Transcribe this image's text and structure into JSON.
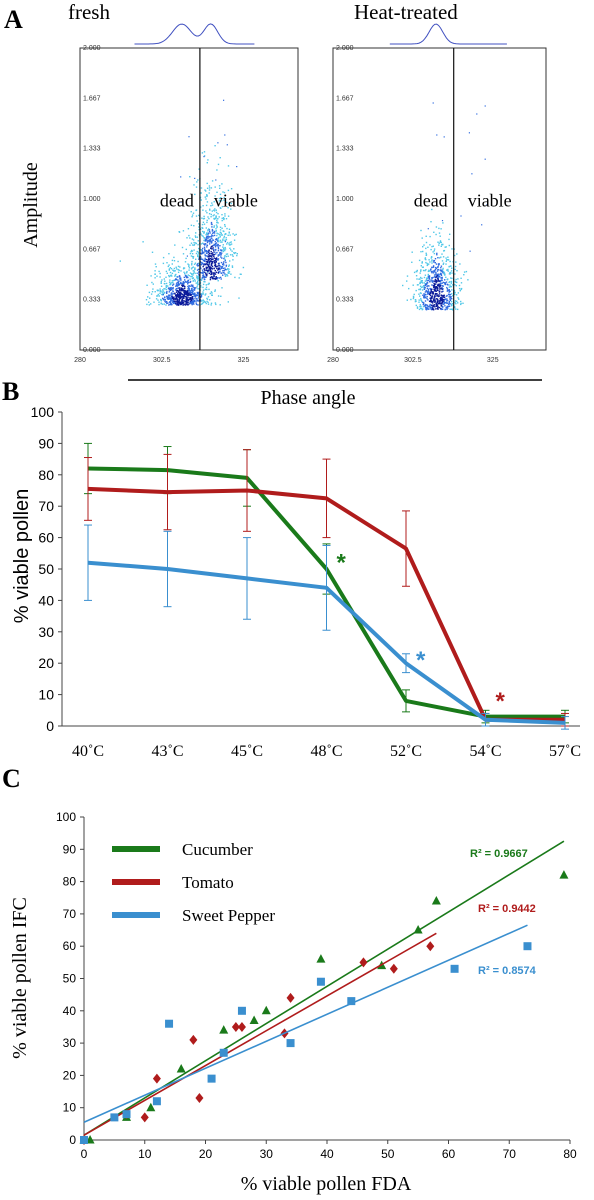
{
  "chart_data": [
    {
      "panel": "A",
      "type": "scatter",
      "ylabel": "Amplitude",
      "xlabel": "Phase angle",
      "subplots": [
        {
          "title": "fresh",
          "xticks": [
            "280",
            "302.5",
            "325"
          ],
          "yticks": [
            "0.000",
            "0.333",
            "0.667",
            "1.000",
            "1.333",
            "1.667",
            "2.000"
          ],
          "xlim": [
            280,
            340
          ],
          "ylim": [
            0,
            2
          ],
          "gate_x": 313,
          "labels": [
            "dead",
            "viable"
          ],
          "clusters": [
            {
              "x": 308,
              "y": 0.35,
              "sx": 4,
              "sy": 0.12
            },
            {
              "x": 316,
              "y": 0.55,
              "sx": 3,
              "sy": 0.2
            }
          ]
        },
        {
          "title": "Heat-treated",
          "xticks": [
            "280",
            "302.5",
            "325"
          ],
          "yticks": [
            "0.000",
            "0.333",
            "0.667",
            "1.000",
            "1.333",
            "1.667",
            "2.000"
          ],
          "xlim": [
            280,
            340
          ],
          "ylim": [
            0,
            2
          ],
          "gate_x": 314,
          "labels": [
            "dead",
            "viable"
          ],
          "clusters": [
            {
              "x": 309,
              "y": 0.35,
              "sx": 3,
              "sy": 0.2
            }
          ]
        }
      ]
    },
    {
      "panel": "B",
      "type": "line",
      "ylabel": "% viable pollen",
      "xlabel": "",
      "categories": [
        "40˚C",
        "43˚C",
        "45˚C",
        "48˚C",
        "52˚C",
        "54˚C",
        "57˚C"
      ],
      "ylim": [
        0,
        100
      ],
      "yticks": [
        0,
        10,
        20,
        30,
        40,
        50,
        60,
        70,
        80,
        90,
        100
      ],
      "series": [
        {
          "color": "#1a7a1a",
          "values": [
            82,
            81.5,
            79,
            50,
            8,
            3,
            3
          ],
          "err": [
            8,
            7.5,
            9,
            8,
            3.5,
            2,
            2
          ]
        },
        {
          "color": "#b01c1c",
          "values": [
            75.5,
            74.5,
            75,
            72.5,
            56.5,
            2,
            2
          ],
          "err": [
            10,
            12,
            13,
            12.5,
            12,
            2,
            2
          ]
        },
        {
          "color": "#3a8fcf",
          "values": [
            52,
            50,
            47,
            44,
            20,
            2,
            1
          ],
          "err": [
            12,
            12,
            13,
            13.5,
            3,
            2,
            2
          ]
        }
      ],
      "annotations": [
        {
          "text": "*",
          "x": "48˚C",
          "y": 52,
          "color": "#1a7a1a"
        },
        {
          "text": "*",
          "x": "52˚C",
          "y": 21,
          "color": "#3a8fcf"
        },
        {
          "text": "*",
          "x": "54˚C",
          "y": 8,
          "color": "#b01c1c"
        }
      ]
    },
    {
      "panel": "C",
      "type": "scatter",
      "xlabel": "% viable pollen FDA",
      "ylabel": "% viable pollen IFC",
      "xlim": [
        0,
        80
      ],
      "ylim": [
        0,
        100
      ],
      "xticks": [
        0,
        10,
        20,
        30,
        40,
        50,
        60,
        70,
        80
      ],
      "yticks": [
        0,
        10,
        20,
        30,
        40,
        50,
        60,
        70,
        80,
        90,
        100
      ],
      "series": [
        {
          "name": "Cucumber",
          "color": "#1a7a1a",
          "marker": "triangle",
          "r2": "R² = 0.9667",
          "fit": [
            [
              0,
              1.5
            ],
            [
              79,
              92.5
            ]
          ],
          "points": [
            [
              0,
              0
            ],
            [
              1,
              0
            ],
            [
              7,
              7
            ],
            [
              11,
              10
            ],
            [
              16,
              22
            ],
            [
              23,
              34
            ],
            [
              28,
              37
            ],
            [
              30,
              40
            ],
            [
              39,
              56
            ],
            [
              49,
              54
            ],
            [
              55,
              65
            ],
            [
              58,
              74
            ],
            [
              79,
              82
            ]
          ]
        },
        {
          "name": "Tomato",
          "color": "#b01c1c",
          "marker": "diamond",
          "r2": "R² = 0.9442",
          "fit": [
            [
              0,
              1.5
            ],
            [
              58,
              64
            ]
          ],
          "points": [
            [
              0,
              0
            ],
            [
              7,
              8
            ],
            [
              10,
              7
            ],
            [
              12,
              19
            ],
            [
              18,
              31
            ],
            [
              19,
              13
            ],
            [
              25,
              35
            ],
            [
              26,
              35
            ],
            [
              33,
              33
            ],
            [
              34,
              44
            ],
            [
              46,
              55
            ],
            [
              51,
              53
            ],
            [
              57,
              60
            ]
          ]
        },
        {
          "name": "Sweet Pepper",
          "color": "#3a8fcf",
          "marker": "square",
          "r2": "R² = 0.8574",
          "fit": [
            [
              0,
              5.5
            ],
            [
              73,
              66.5
            ]
          ],
          "points": [
            [
              0,
              0
            ],
            [
              5,
              7
            ],
            [
              7,
              8
            ],
            [
              12,
              12
            ],
            [
              14,
              36
            ],
            [
              21,
              19
            ],
            [
              23,
              27
            ],
            [
              26,
              40
            ],
            [
              34,
              30
            ],
            [
              39,
              49
            ],
            [
              44,
              43
            ],
            [
              61,
              53
            ],
            [
              73,
              60
            ]
          ]
        }
      ]
    }
  ]
}
